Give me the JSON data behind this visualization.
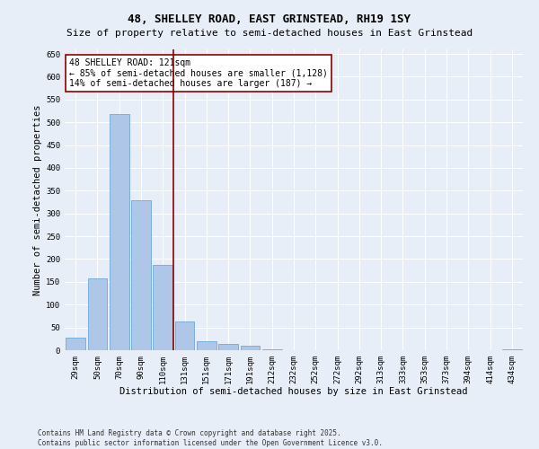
{
  "title": "48, SHELLEY ROAD, EAST GRINSTEAD, RH19 1SY",
  "subtitle": "Size of property relative to semi-detached houses in East Grinstead",
  "xlabel": "Distribution of semi-detached houses by size in East Grinstead",
  "ylabel": "Number of semi-detached properties",
  "categories": [
    "29sqm",
    "50sqm",
    "70sqm",
    "90sqm",
    "110sqm",
    "131sqm",
    "151sqm",
    "171sqm",
    "191sqm",
    "212sqm",
    "232sqm",
    "252sqm",
    "272sqm",
    "292sqm",
    "313sqm",
    "333sqm",
    "353sqm",
    "373sqm",
    "394sqm",
    "414sqm",
    "434sqm"
  ],
  "values": [
    28,
    158,
    519,
    330,
    187,
    63,
    20,
    13,
    10,
    1,
    0,
    0,
    0,
    0,
    0,
    0,
    0,
    0,
    0,
    0,
    1
  ],
  "bar_color": "#aec6e8",
  "bar_edgecolor": "#6ea8d8",
  "vline_x": 5.0,
  "vline_color": "#8b0000",
  "annotation_line1": "48 SHELLEY ROAD: 121sqm",
  "annotation_line2": "← 85% of semi-detached houses are smaller (1,128)",
  "annotation_line3": "14% of semi-detached houses are larger (187) →",
  "annotation_box_facecolor": "#ffffff",
  "annotation_box_edgecolor": "#8b0000",
  "ylim": [
    0,
    660
  ],
  "yticks": [
    0,
    50,
    100,
    150,
    200,
    250,
    300,
    350,
    400,
    450,
    500,
    550,
    600,
    650
  ],
  "background_color": "#e8eef7",
  "footer_text": "Contains HM Land Registry data © Crown copyright and database right 2025.\nContains public sector information licensed under the Open Government Licence v3.0.",
  "title_fontsize": 9,
  "subtitle_fontsize": 8,
  "label_fontsize": 7.5,
  "tick_fontsize": 6.5,
  "annotation_fontsize": 7,
  "footer_fontsize": 5.5
}
